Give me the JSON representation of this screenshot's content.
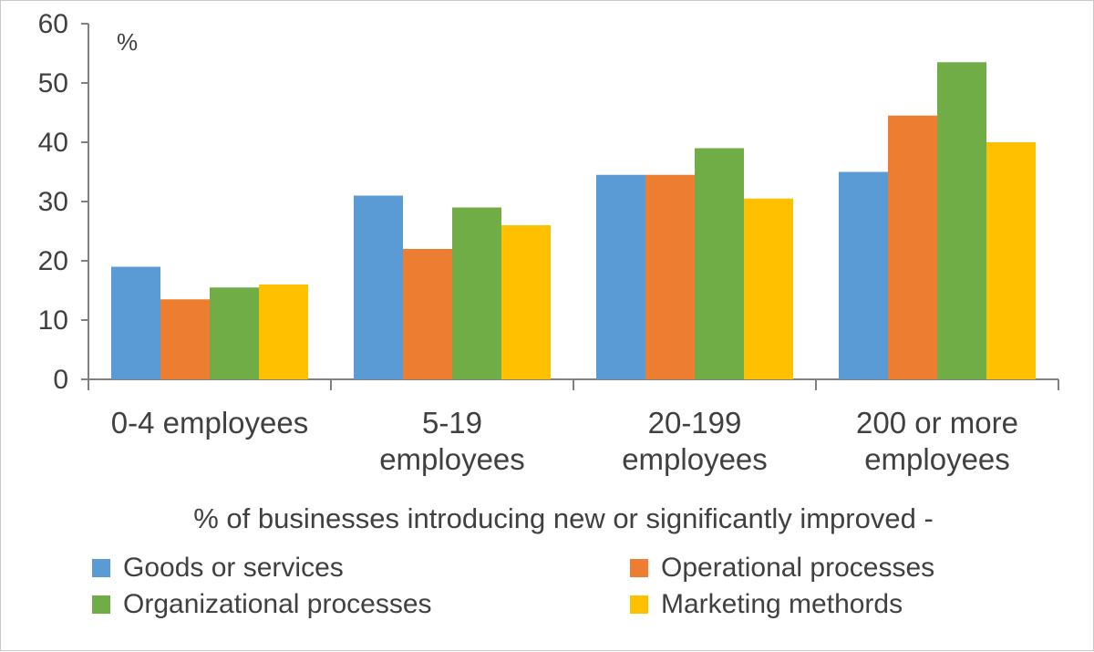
{
  "chart_data": {
    "type": "bar",
    "unit_label": "%",
    "categories": [
      [
        "0-4 employees"
      ],
      [
        "5-19",
        "employees"
      ],
      [
        "20-199",
        "employees"
      ],
      [
        "200 or more",
        "employees"
      ]
    ],
    "series": [
      {
        "name": "Goods or services",
        "color": "#5B9BD5",
        "values": [
          19,
          31,
          34.5,
          35
        ]
      },
      {
        "name": "Operational processes",
        "color": "#ED7D31",
        "values": [
          13.5,
          22,
          34.5,
          44.5
        ]
      },
      {
        "name": "Organizational processes",
        "color": "#70AD47",
        "values": [
          15.5,
          29,
          39,
          53.5
        ]
      },
      {
        "name": "Marketing methords",
        "color": "#FFC000",
        "values": [
          16,
          26,
          30.5,
          40
        ]
      }
    ],
    "ylim": [
      0,
      60
    ],
    "yticks": [
      0,
      10,
      20,
      30,
      40,
      50,
      60
    ],
    "caption": "% of businesses introducing new or significantly improved -",
    "legend_position": "bottom"
  }
}
